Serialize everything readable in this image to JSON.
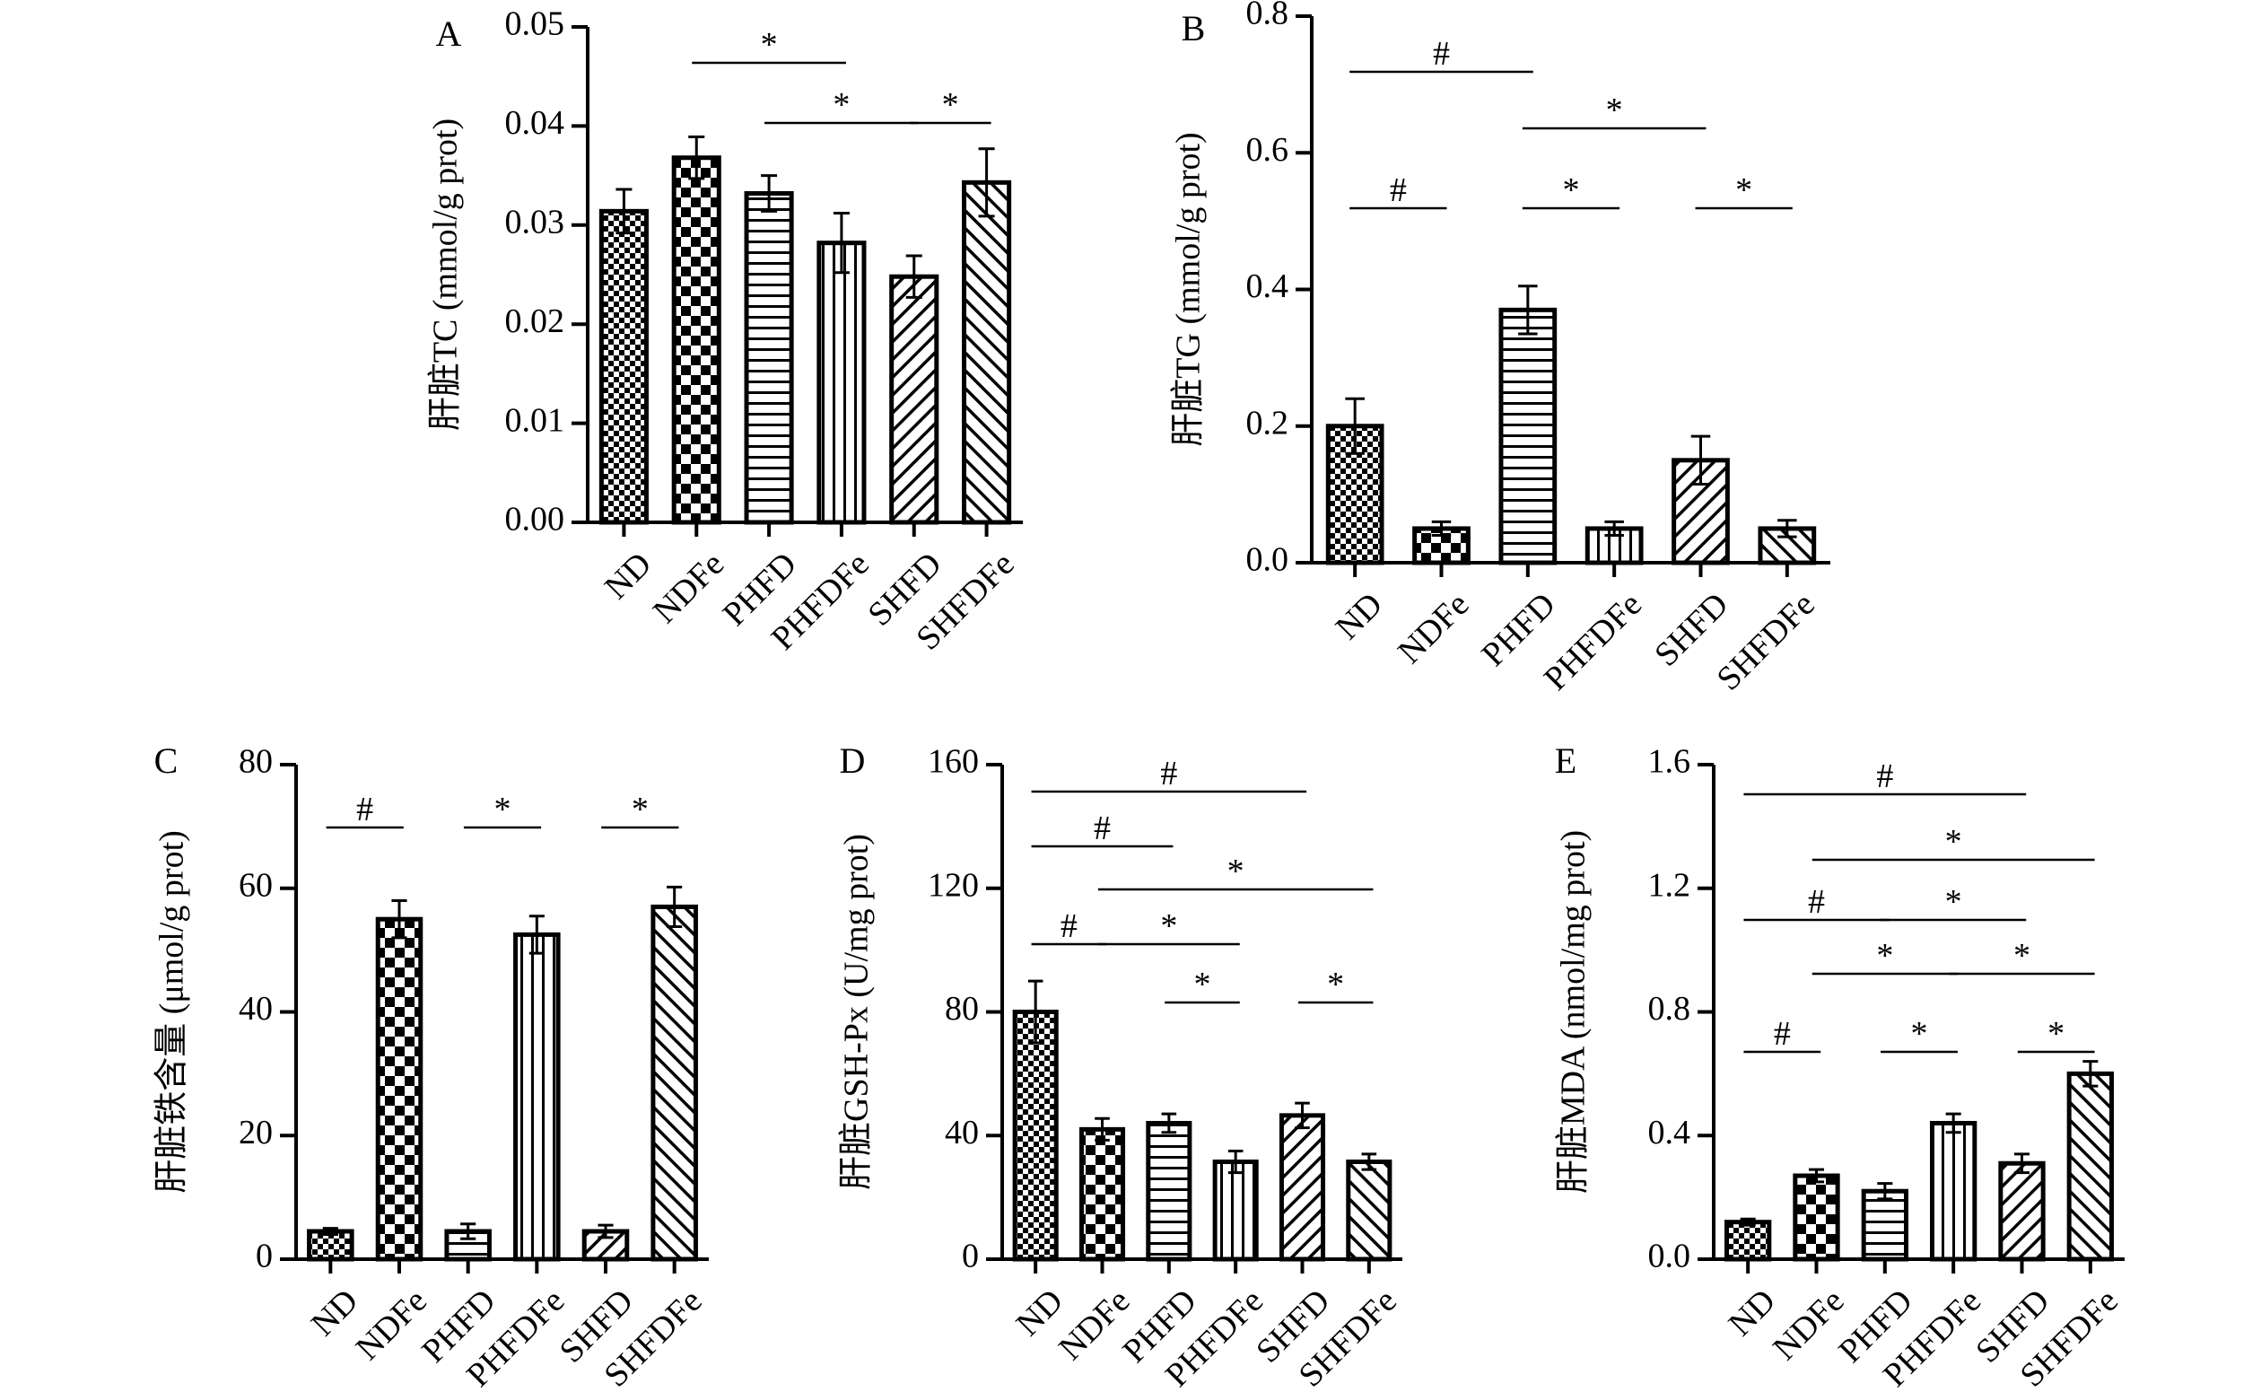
{
  "chart_data": [
    {
      "panel": "A",
      "type": "bar",
      "ylabel": "肝脏TC (mmol/g prot)",
      "categories": [
        "ND",
        "NDFe",
        "PHFD",
        "PHFDFe",
        "SHFD",
        "SHFDFe"
      ],
      "values": [
        0.0314,
        0.0368,
        0.0332,
        0.0282,
        0.0248,
        0.0343
      ],
      "errors": [
        0.0022,
        0.0021,
        0.0018,
        0.003,
        0.0021,
        0.0034
      ],
      "ylim": [
        0,
        0.05
      ],
      "yticks": [
        "0.00",
        "0.01",
        "0.02",
        "0.03",
        "0.04",
        "0.05"
      ],
      "annotations": [
        {
          "from": "NDFe",
          "to": "PHFDFe",
          "symbol": "*"
        },
        {
          "from": "PHFD",
          "to": "SHFD",
          "symbol": "*"
        },
        {
          "from": "SHFD",
          "to": "SHFDFe",
          "symbol": "*"
        }
      ]
    },
    {
      "panel": "B",
      "type": "bar",
      "ylabel": "肝脏TG (mmol/g prot)",
      "categories": [
        "ND",
        "NDFe",
        "PHFD",
        "PHFDFe",
        "SHFD",
        "SHFDFe"
      ],
      "values": [
        0.2,
        0.05,
        0.37,
        0.05,
        0.15,
        0.05
      ],
      "errors": [
        0.04,
        0.01,
        0.035,
        0.01,
        0.035,
        0.012
      ],
      "ylim": [
        0,
        0.8
      ],
      "yticks": [
        "0.0",
        "0.2",
        "0.4",
        "0.6",
        "0.8"
      ],
      "annotations": [
        {
          "from": "ND",
          "to": "PHFD",
          "symbol": "#"
        },
        {
          "from": "PHFD",
          "to": "SHFD",
          "symbol": "*"
        },
        {
          "from": "ND",
          "to": "NDFe",
          "symbol": "#"
        },
        {
          "from": "PHFD",
          "to": "PHFDFe",
          "symbol": "*"
        },
        {
          "from": "SHFD",
          "to": "SHFDFe",
          "symbol": "*"
        }
      ]
    },
    {
      "panel": "C",
      "type": "bar",
      "ylabel": "肝脏铁含量 (μmol/g prot)",
      "categories": [
        "ND",
        "NDFe",
        "PHFD",
        "PHFDFe",
        "SHFD",
        "SHFDFe"
      ],
      "values": [
        4.5,
        55,
        4.5,
        52.5,
        4.5,
        57
      ],
      "errors": [
        0.5,
        3,
        1.2,
        3,
        1,
        3.2
      ],
      "ylim": [
        0,
        80
      ],
      "yticks": [
        "0",
        "20",
        "40",
        "60",
        "80"
      ],
      "annotations": [
        {
          "from": "ND",
          "to": "NDFe",
          "symbol": "#"
        },
        {
          "from": "PHFD",
          "to": "PHFDFe",
          "symbol": "*"
        },
        {
          "from": "SHFD",
          "to": "SHFDFe",
          "symbol": "*"
        }
      ]
    },
    {
      "panel": "D",
      "type": "bar",
      "ylabel": "肝脏GSH-Px (U/mg prot)",
      "categories": [
        "ND",
        "NDFe",
        "PHFD",
        "PHFDFe",
        "SHFD",
        "SHFDFe"
      ],
      "values": [
        80,
        42,
        44,
        31.5,
        46.5,
        31.5
      ],
      "errors": [
        10,
        3.5,
        3,
        3.5,
        4,
        2.5
      ],
      "ylim": [
        0,
        160
      ],
      "yticks": [
        "0",
        "40",
        "80",
        "120",
        "160"
      ],
      "annotations": [
        {
          "from": "ND",
          "to": "SHFD",
          "symbol": "#"
        },
        {
          "from": "ND",
          "to": "PHFD",
          "symbol": "#"
        },
        {
          "from": "NDFe",
          "to": "SHFDFe",
          "symbol": "*"
        },
        {
          "from": "ND",
          "to": "NDFe",
          "symbol": "#"
        },
        {
          "from": "NDFe",
          "to": "PHFDFe",
          "symbol": "*"
        },
        {
          "from": "PHFD",
          "to": "PHFDFe",
          "symbol": "*"
        },
        {
          "from": "SHFD",
          "to": "SHFDFe",
          "symbol": "*"
        }
      ]
    },
    {
      "panel": "E",
      "type": "bar",
      "ylabel": "肝脏MDA (nmol/mg prot)",
      "categories": [
        "ND",
        "NDFe",
        "PHFD",
        "PHFDFe",
        "SHFD",
        "SHFDFe"
      ],
      "values": [
        0.12,
        0.27,
        0.22,
        0.44,
        0.31,
        0.6
      ],
      "errors": [
        0.01,
        0.02,
        0.025,
        0.03,
        0.03,
        0.04
      ],
      "ylim": [
        0,
        1.6
      ],
      "yticks": [
        "0.0",
        "0.4",
        "0.8",
        "1.2",
        "1.6"
      ],
      "annotations": [
        {
          "from": "ND",
          "to": "SHFD",
          "symbol": "#"
        },
        {
          "from": "NDFe",
          "to": "SHFDFe",
          "symbol": "*"
        },
        {
          "from": "ND",
          "to": "PHFD",
          "symbol": "#"
        },
        {
          "from": "PHFD",
          "to": "SHFD",
          "symbol": "*"
        },
        {
          "from": "NDFe",
          "to": "PHFDFe",
          "symbol": "*"
        },
        {
          "from": "PHFDFe",
          "to": "SHFDFe",
          "symbol": "*"
        },
        {
          "from": "ND",
          "to": "NDFe",
          "symbol": "#"
        },
        {
          "from": "PHFD",
          "to": "PHFDFe",
          "symbol": "*"
        },
        {
          "from": "SHFD",
          "to": "SHFDFe",
          "symbol": "*"
        }
      ]
    }
  ]
}
